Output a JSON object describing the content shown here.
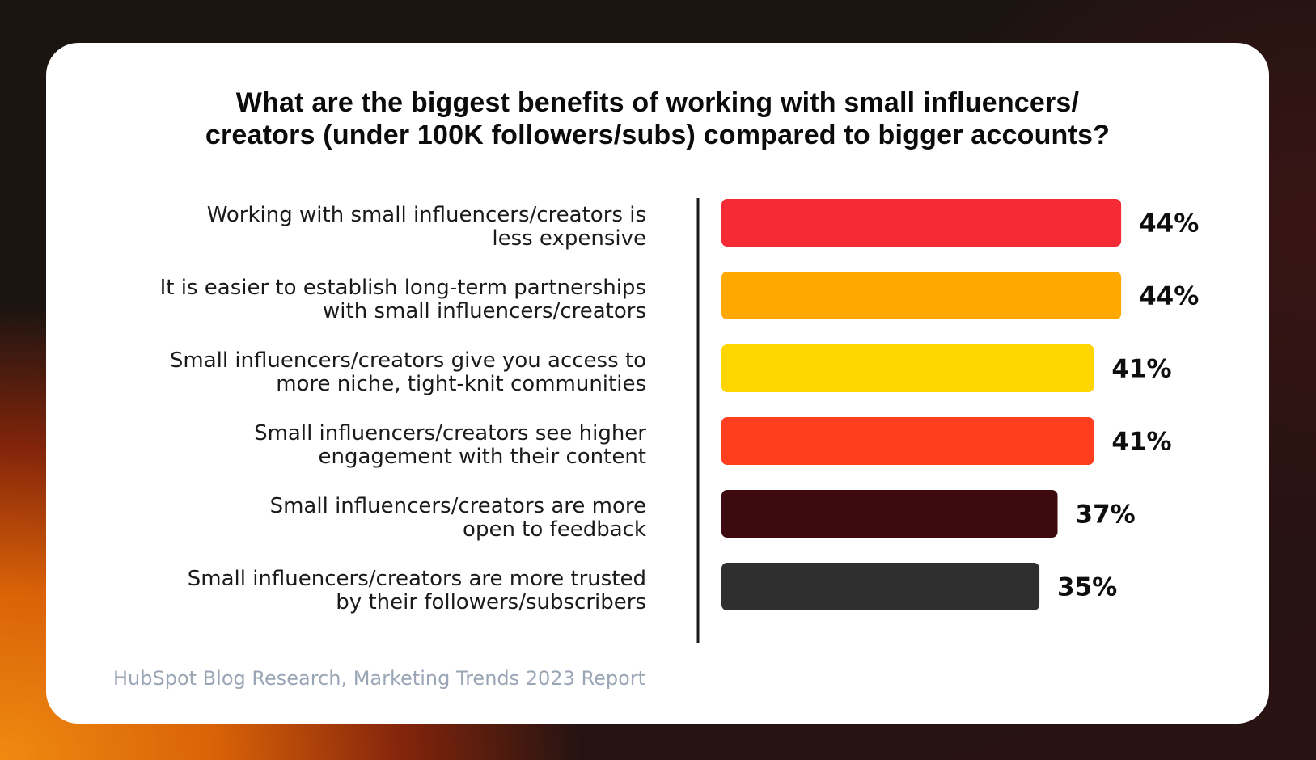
{
  "source": "HubSpot Blog Research, Marketing Trends 2023 Report",
  "chart_data": {
    "type": "bar",
    "orientation": "horizontal",
    "title_lines": [
      "What are the biggest benefits of working with small influencers/",
      "creators (under 100K followers/subs) compared to bigger accounts?"
    ],
    "categories": [
      [
        "Working with small influencers/creators is",
        "less expensive"
      ],
      [
        "It is easier to establish long-term partnerships",
        "with small influencers/creators"
      ],
      [
        "Small influencers/creators give you access to",
        "more niche, tight-knit communities"
      ],
      [
        "Small influencers/creators see higher",
        "engagement with their content"
      ],
      [
        "Small influencers/creators are more",
        "open to feedback"
      ],
      [
        "Small influencers/creators are more trusted",
        "by their followers/subscribers"
      ]
    ],
    "values": [
      44,
      44,
      41,
      41,
      37,
      35
    ],
    "value_labels": [
      "44%",
      "44%",
      "41%",
      "41%",
      "37%",
      "35%"
    ],
    "colors": [
      "#f42a35",
      "#ffa800",
      "#ffd500",
      "#ff3d1f",
      "#3d0b0f",
      "#2f2f2f"
    ],
    "unit": "%",
    "grid": false,
    "legend": "none"
  }
}
